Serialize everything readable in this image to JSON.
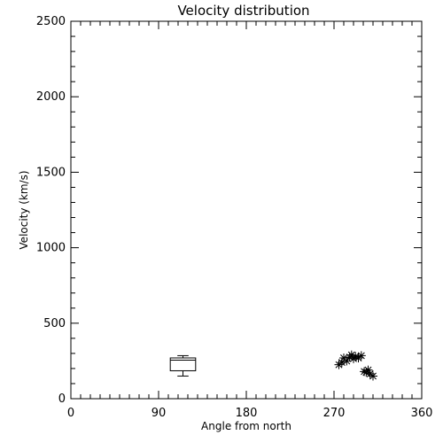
{
  "chart_data": {
    "type": "scatter",
    "title": "Velocity distribution",
    "xlabel": "Angle from north",
    "ylabel": "Velocity (km/s)",
    "xlim": [
      0,
      360
    ],
    "ylim": [
      0,
      2500
    ],
    "xticks": [
      0,
      90,
      180,
      270,
      360
    ],
    "yticks": [
      0,
      500,
      1000,
      1500,
      2000,
      2500
    ],
    "grid": false,
    "box": {
      "x": 115,
      "half_width": 13,
      "min": 150,
      "q1": 185,
      "median": 255,
      "q3": 270,
      "max": 285
    },
    "series": [
      {
        "marker": "asterisk",
        "x": [
          275,
          278,
          280,
          283,
          286,
          288,
          290,
          292,
          295,
          298,
          301,
          303,
          305,
          307,
          310
        ],
        "y": [
          225,
          240,
          270,
          250,
          275,
          290,
          265,
          280,
          270,
          285,
          180,
          175,
          190,
          165,
          150
        ]
      }
    ]
  }
}
